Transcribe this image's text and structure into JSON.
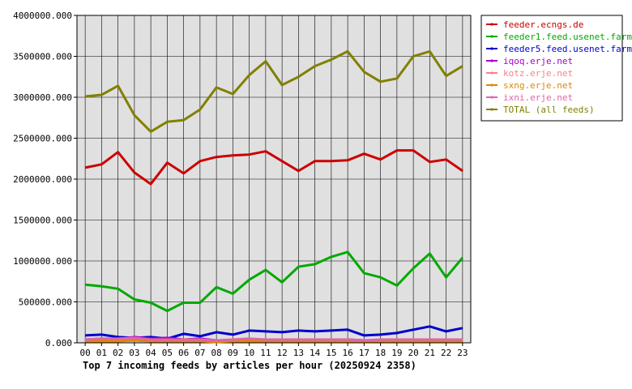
{
  "chart_data": {
    "type": "line",
    "title": "Top 7 incoming feeds by articles per hour (20250924 2358)",
    "x": [
      "00",
      "01",
      "02",
      "03",
      "04",
      "05",
      "06",
      "07",
      "08",
      "09",
      "10",
      "11",
      "12",
      "13",
      "14",
      "15",
      "16",
      "17",
      "18",
      "19",
      "20",
      "21",
      "22",
      "23"
    ],
    "ylim": [
      0,
      4000000
    ],
    "yticks": [
      "0.000",
      "500000.000",
      "1000000.000",
      "1500000.000",
      "2000000.000",
      "2500000.000",
      "3000000.000",
      "3500000.000",
      "4000000.000"
    ],
    "grid": true,
    "legend_position": "right",
    "series": [
      {
        "name": "feeder.ecngs.de",
        "color": "#cc0000",
        "values": [
          2140000,
          2180000,
          2330000,
          2080000,
          1940000,
          2200000,
          2070000,
          2220000,
          2270000,
          2290000,
          2300000,
          2340000,
          2220000,
          2100000,
          2220000,
          2220000,
          2230000,
          2310000,
          2240000,
          2350000,
          2350000,
          2210000,
          2240000,
          2100000
        ]
      },
      {
        "name": "feeder1.feed.usenet.farm",
        "color": "#00aa00",
        "values": [
          710000,
          690000,
          660000,
          530000,
          490000,
          390000,
          490000,
          490000,
          680000,
          600000,
          770000,
          890000,
          740000,
          930000,
          960000,
          1050000,
          1110000,
          850000,
          800000,
          700000,
          910000,
          1090000,
          800000,
          1040000
        ]
      },
      {
        "name": "feeder5.feed.usenet.farm",
        "color": "#0000cc",
        "values": [
          90000,
          100000,
          70000,
          60000,
          70000,
          50000,
          110000,
          80000,
          130000,
          100000,
          150000,
          140000,
          130000,
          150000,
          140000,
          150000,
          160000,
          90000,
          100000,
          120000,
          160000,
          200000,
          140000,
          180000
        ]
      },
      {
        "name": "iqoq.erje.net",
        "color": "#aa00cc",
        "values": [
          40000,
          50000,
          45000,
          70000,
          50000,
          60000,
          40000,
          50000,
          30000,
          30000,
          40000,
          40000,
          30000,
          30000,
          30000,
          40000,
          40000,
          30000,
          30000,
          30000,
          40000,
          40000,
          40000,
          40000
        ]
      },
      {
        "name": "kotz.erje.net",
        "color": "#ff8080",
        "values": [
          30000,
          40000,
          40000,
          50000,
          40000,
          30000,
          30000,
          40000,
          20000,
          30000,
          40000,
          30000,
          30000,
          30000,
          30000,
          30000,
          30000,
          20000,
          30000,
          30000,
          30000,
          30000,
          30000,
          30000
        ]
      },
      {
        "name": "sxng.erje.net",
        "color": "#dd8800",
        "values": [
          20000,
          20000,
          20000,
          30000,
          20000,
          20000,
          20000,
          20000,
          10000,
          20000,
          20000,
          20000,
          20000,
          20000,
          20000,
          20000,
          20000,
          20000,
          20000,
          20000,
          20000,
          20000,
          20000,
          20000
        ]
      },
      {
        "name": "ixni.erje.net",
        "color": "#dd66aa",
        "values": [
          40000,
          50000,
          50000,
          60000,
          40000,
          40000,
          40000,
          40000,
          30000,
          40000,
          50000,
          40000,
          40000,
          40000,
          40000,
          40000,
          40000,
          30000,
          40000,
          40000,
          40000,
          40000,
          40000,
          40000
        ]
      },
      {
        "name": "TOTAL (all feeds)",
        "color": "#808000",
        "values": [
          3010000,
          3030000,
          3140000,
          2780000,
          2580000,
          2700000,
          2720000,
          2850000,
          3120000,
          3040000,
          3270000,
          3440000,
          3150000,
          3250000,
          3380000,
          3460000,
          3560000,
          3310000,
          3190000,
          3230000,
          3500000,
          3560000,
          3260000,
          3380000
        ]
      }
    ]
  }
}
